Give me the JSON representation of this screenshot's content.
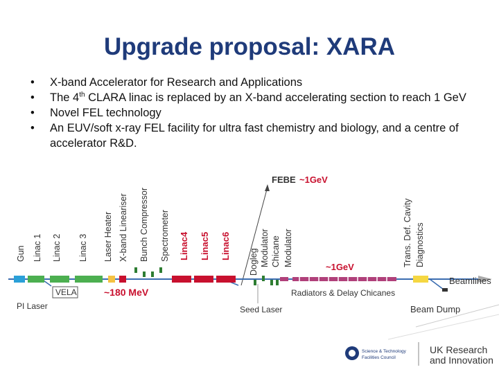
{
  "title": "Upgrade proposal: XARA",
  "bullets": {
    "b1": "X-band Accelerator for Research and Applications",
    "b2_pre": "The 4",
    "b2_sup": "th",
    "b2_post": " CLARA linac is replaced by an X-band accelerating section to reach 1 GeV",
    "b3": "Novel FEL technology",
    "b4": "An EUV/soft x-ray FEL facility for ultra fast chemistry and biology, and a centre of accelerator R&D."
  },
  "diagram": {
    "components": {
      "gun": "Gun",
      "linac1": "Linac 1",
      "linac2": "Linac 2",
      "linac3": "Linac 3",
      "laser_heater": "Laser Heater",
      "xband_lineariser": "X-band Lineariser",
      "bunch_compressor": "Bunch Compressor",
      "spectrometer": "Spectrometer",
      "linac4": "Linac4",
      "linac5": "Linac5",
      "linac6": "Linac6",
      "dogleg": "Dogleg",
      "modulator1": "Modulator",
      "chicane": "Chicane",
      "modulator2": "Modulator",
      "tdc1": "Trans. Def. Cavity",
      "tdc2": "Diagnostics"
    },
    "febe": "FEBE",
    "febe_energy": "~1GeV",
    "energy_mid": "~1GeV",
    "energy_low": "~180 MeV",
    "vela": "VELA",
    "pi_laser": "PI Laser",
    "seed_laser": "Seed Laser",
    "radiators": "Radiators & Delay Chicanes",
    "beamlines": "Beamlines",
    "beam_dump": "Beam Dump"
  },
  "footer": {
    "stfc_line1": "Science & Technology",
    "stfc_line2": "Facilities Council",
    "ukri_line1": "UK Research",
    "ukri_line2": "and Innovation"
  },
  "colors": {
    "title": "#1f3b7a",
    "linac_red": "#c8102e",
    "beamline_blue": "#3a6cb0",
    "undulator_magenta": "#b0407a"
  }
}
